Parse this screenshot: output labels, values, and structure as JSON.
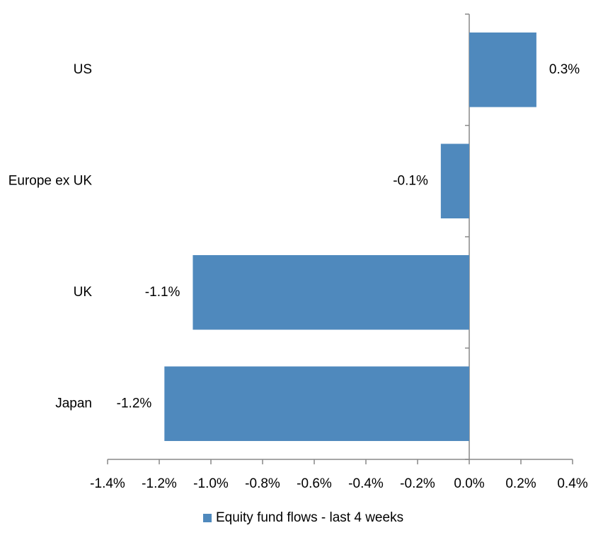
{
  "chart_data": {
    "type": "hbar",
    "categories": [
      "US",
      "Europe ex UK",
      "UK",
      "Japan"
    ],
    "series": [
      {
        "name": "Equity fund flows - last 4 weeks",
        "color": "#4f89bd",
        "values": [
          0.26,
          -0.11,
          -1.07,
          -1.18
        ],
        "value_labels": [
          "0.3%",
          "-0.1%",
          "-1.1%",
          "-1.2%"
        ]
      }
    ],
    "xlim": [
      -1.4,
      0.4
    ],
    "xticks": [
      {
        "value": -1.4,
        "label": "-1.4%"
      },
      {
        "value": -1.2,
        "label": "-1.2%"
      },
      {
        "value": -1.0,
        "label": "-1.0%"
      },
      {
        "value": -0.8,
        "label": "-0.8%"
      },
      {
        "value": -0.6,
        "label": "-0.6%"
      },
      {
        "value": -0.4,
        "label": "-0.4%"
      },
      {
        "value": -0.2,
        "label": "-0.2%"
      },
      {
        "value": 0.0,
        "label": "0.0%"
      },
      {
        "value": 0.2,
        "label": "0.2%"
      },
      {
        "value": 0.4,
        "label": "0.4%"
      }
    ],
    "legend": "bottom"
  }
}
